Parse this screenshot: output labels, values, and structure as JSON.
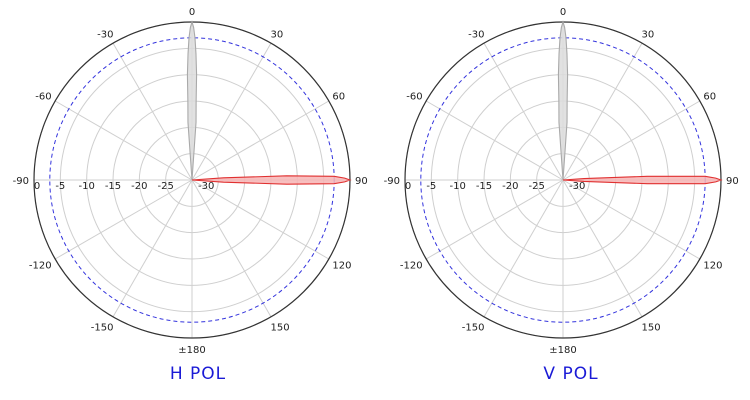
{
  "chart_data": [
    {
      "type": "polar",
      "title": "H POL",
      "angle_ticks": [
        "0",
        "30",
        "60",
        "90",
        "120",
        "150",
        "±180",
        "-150",
        "-120",
        "-90",
        "-60",
        "-30"
      ],
      "radial_ticks": [
        "0",
        "-5",
        "-10",
        "-15",
        "-20",
        "-25",
        "-30"
      ],
      "rlim": [
        -30,
        0
      ],
      "reference_level_db": -3,
      "reference_style": "dashed",
      "series": [
        {
          "color": "#a9a9a9",
          "fill": "#dcdcdc",
          "points": [
            {
              "angle": -9,
              "db": -30
            },
            {
              "angle": -4,
              "db": -19
            },
            {
              "angle": -3,
              "db": -15
            },
            {
              "angle": -2.5,
              "db": -10
            },
            {
              "angle": -1.8,
              "db": -6
            },
            {
              "angle": -1.2,
              "db": -3
            },
            {
              "angle": -0.6,
              "db": -1
            },
            {
              "angle": 0,
              "db": 0
            },
            {
              "angle": 0.6,
              "db": -1
            },
            {
              "angle": 1.2,
              "db": -3
            },
            {
              "angle": 1.8,
              "db": -6
            },
            {
              "angle": 2.5,
              "db": -10
            },
            {
              "angle": 3,
              "db": -15
            },
            {
              "angle": 4,
              "db": -19
            },
            {
              "angle": 9,
              "db": -30
            }
          ]
        },
        {
          "color": "#e03030",
          "fill": "#f7b4b4",
          "points": [
            {
              "angle": 83,
              "db": -30
            },
            {
              "angle": 86,
              "db": -24
            },
            {
              "angle": 87.5,
              "db": -12
            },
            {
              "angle": 88.5,
              "db": -3
            },
            {
              "angle": 89.3,
              "db": -1
            },
            {
              "angle": 90,
              "db": 0
            },
            {
              "angle": 90.7,
              "db": -1
            },
            {
              "angle": 91.5,
              "db": -3
            },
            {
              "angle": 92.5,
              "db": -12
            },
            {
              "angle": 94,
              "db": -24
            },
            {
              "angle": 97,
              "db": -30
            }
          ]
        }
      ]
    },
    {
      "type": "polar",
      "title": "V POL",
      "angle_ticks": [
        "0",
        "30",
        "60",
        "90",
        "120",
        "150",
        "±180",
        "-150",
        "-120",
        "-90",
        "-60",
        "-30"
      ],
      "radial_ticks": [
        "0",
        "-5",
        "-10",
        "-15",
        "-20",
        "-25",
        "-30"
      ],
      "rlim": [
        -30,
        0
      ],
      "reference_level_db": -3,
      "reference_style": "dashed",
      "series": [
        {
          "color": "#a9a9a9",
          "fill": "#dcdcdc",
          "points": [
            {
              "angle": -9,
              "db": -30
            },
            {
              "angle": -4,
              "db": -19
            },
            {
              "angle": -3,
              "db": -15
            },
            {
              "angle": -2.5,
              "db": -10
            },
            {
              "angle": -1.8,
              "db": -6
            },
            {
              "angle": -1.2,
              "db": -3
            },
            {
              "angle": -0.6,
              "db": -1
            },
            {
              "angle": 0,
              "db": 0
            },
            {
              "angle": 0.6,
              "db": -1
            },
            {
              "angle": 1.2,
              "db": -3
            },
            {
              "angle": 1.8,
              "db": -6
            },
            {
              "angle": 2.5,
              "db": -10
            },
            {
              "angle": 3,
              "db": -15
            },
            {
              "angle": 4,
              "db": -19
            },
            {
              "angle": 9,
              "db": -30
            }
          ]
        },
        {
          "color": "#e03030",
          "fill": "#f7b4b4",
          "points": [
            {
              "angle": 83,
              "db": -30
            },
            {
              "angle": 86,
              "db": -26
            },
            {
              "angle": 87.5,
              "db": -14
            },
            {
              "angle": 88.5,
              "db": -3
            },
            {
              "angle": 89.3,
              "db": -1
            },
            {
              "angle": 90,
              "db": 0
            },
            {
              "angle": 90.7,
              "db": -1
            },
            {
              "angle": 91.5,
              "db": -3
            },
            {
              "angle": 92.5,
              "db": -14
            },
            {
              "angle": 94,
              "db": -26
            },
            {
              "angle": 97,
              "db": -30
            }
          ]
        }
      ]
    }
  ]
}
